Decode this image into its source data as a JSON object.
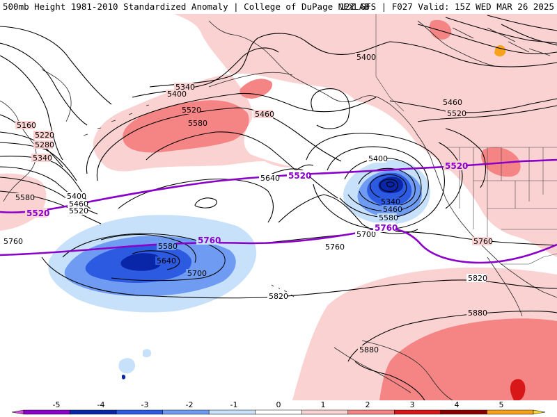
{
  "header": {
    "title": "500mb Height 1981-2010 Standardized Anomaly | College of DuPage NEXLAB",
    "run_info": "12Z GFS | F027 Valid: 15Z WED MAR 26 2025"
  },
  "contour_labels": [
    "5160",
    "5220",
    "5280",
    "5340",
    "5400",
    "5460",
    "5520",
    "5580",
    "5640",
    "5700",
    "5760",
    "5820",
    "5880"
  ],
  "highlight_contours": [
    "5520",
    "5760"
  ],
  "colorbar": {
    "ticks": [
      "-5",
      "-4",
      "-3",
      "-2",
      "-1",
      "0",
      "1",
      "2",
      "3",
      "4",
      "5"
    ],
    "colors": [
      "#d04ed8",
      "#8a00c8",
      "#0a26a8",
      "#2c5ae0",
      "#6f9cf2",
      "#c7e1fb",
      "#ffffff",
      "#fbd2d2",
      "#f58585",
      "#d81818",
      "#8a0000",
      "#f7a21a",
      "#f5d838"
    ]
  }
}
